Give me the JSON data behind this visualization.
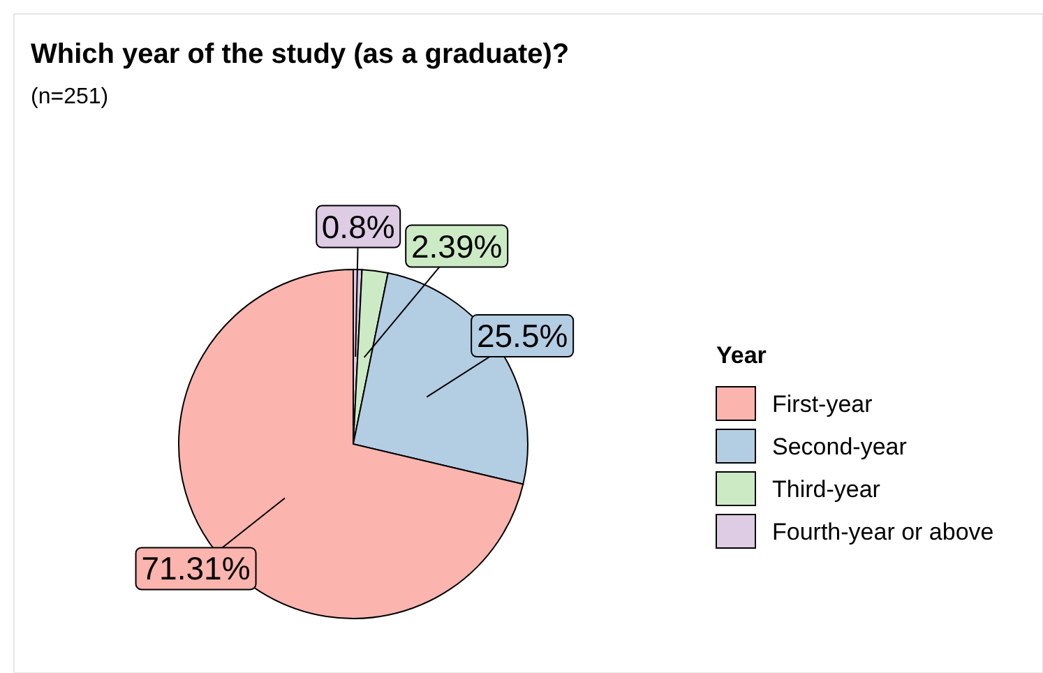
{
  "chart_data": {
    "type": "pie",
    "title": "Which year of the study (as a graduate)?",
    "subtitle": "(n=251)",
    "legend_title": "Year",
    "legend": "right",
    "value_labels": [
      "71.31%",
      "25.5%",
      "2.39%",
      "0.8%"
    ],
    "categories": [
      "First-year",
      "Second-year",
      "Third-year",
      "Fourth-year or above"
    ],
    "values": [
      71.31,
      25.5,
      2.39,
      0.8
    ],
    "colors": [
      "#fbb4ae",
      "#b3cde3",
      "#ccebc5",
      "#decbe4"
    ]
  }
}
